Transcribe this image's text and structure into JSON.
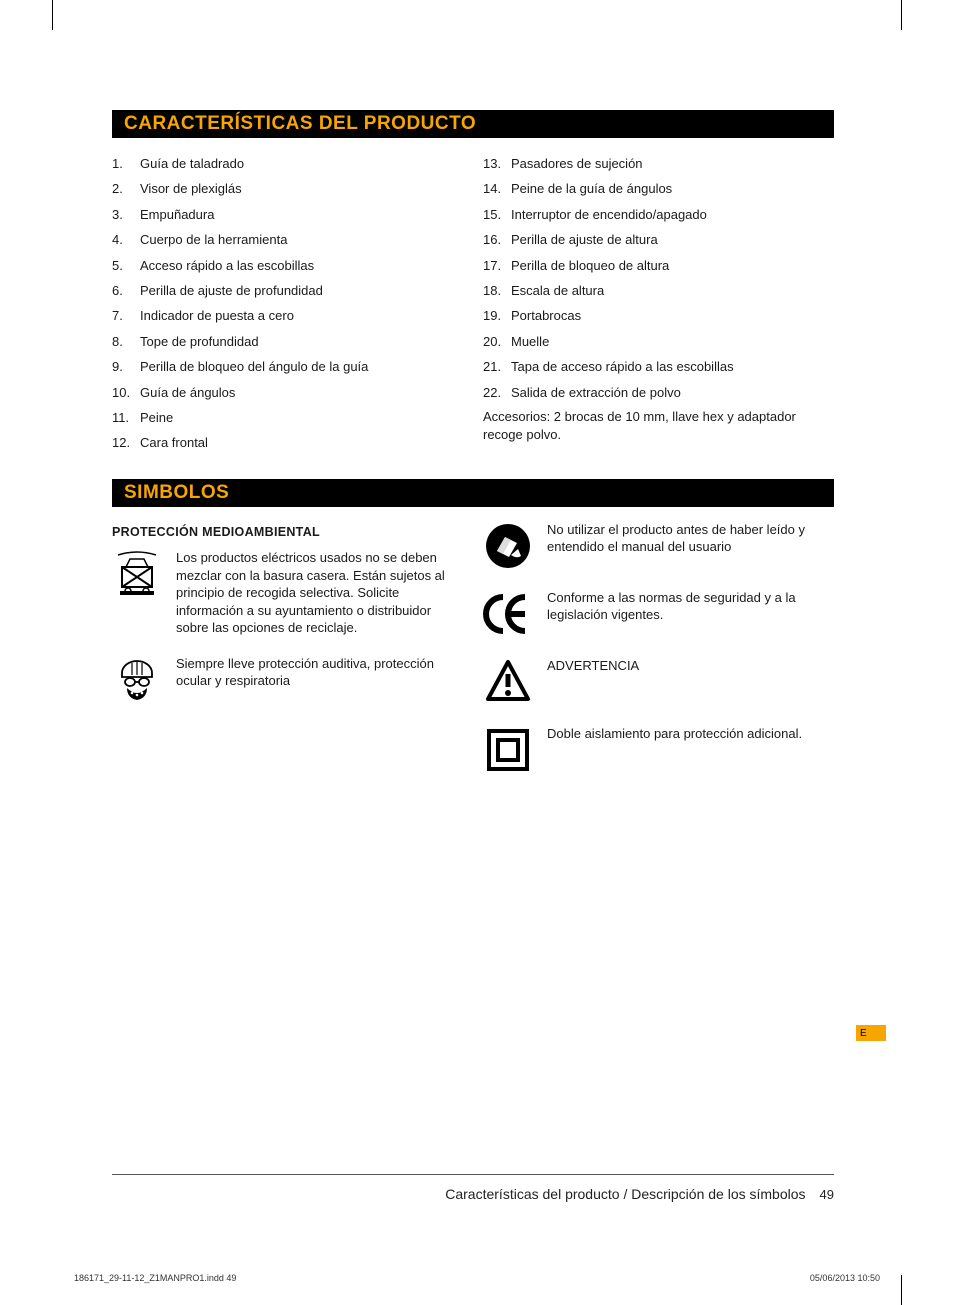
{
  "section1": {
    "title": "CARACTERÍSTICAS DEL PRODUCTO",
    "left_start": 1,
    "left": [
      "Guía de taladrado",
      "Visor de plexiglás",
      "Empuñadura",
      "Cuerpo de la herramienta",
      "Acceso rápido a las escobillas",
      "Perilla de ajuste de profundidad",
      "Indicador de puesta a cero",
      "Tope de profundidad",
      "Perilla de bloqueo del ángulo de la guía",
      "Guía de ángulos",
      "Peine",
      "Cara frontal"
    ],
    "right_start": 13,
    "right": [
      "Pasadores de sujeción",
      "Peine de la guía de ángulos",
      "Interruptor de encendido/apagado",
      "Perilla de ajuste de altura",
      "Perilla de bloqueo de altura",
      "Escala de altura",
      "Portabrocas",
      "Muelle",
      "Tapa de acceso rápido a las escobillas",
      "Salida de extracción de polvo"
    ],
    "accessory_note": "Accesorios: 2 brocas de 10 mm, llave hex y adaptador recoge polvo."
  },
  "section2": {
    "title": "SIMBOLOS",
    "sub_title": "PROTECCIÓN MEDIOAMBIENTAL",
    "left_rows": [
      {
        "icon": "weee",
        "text": "Los productos eléctricos usados no se deben mezclar con la basura casera. Están sujetos al principio de recogida selectiva. Solicite información a su ayuntamiento o distribuidor sobre las opciones de reciclaje."
      },
      {
        "icon": "ppe",
        "text": "Siempre lleve protección auditiva, protección ocular y respiratoria"
      }
    ],
    "right_rows": [
      {
        "icon": "manual",
        "text": "No utilizar el producto antes de haber leído y entendido el manual del usuario"
      },
      {
        "icon": "ce",
        "text": "Conforme a las normas de seguridad y a la legislación vigentes."
      },
      {
        "icon": "warning",
        "text": "ADVERTENCIA"
      },
      {
        "icon": "double-insulation",
        "text": "Doble aislamiento para protección adicional."
      }
    ]
  },
  "lang_tab": "E",
  "footer": {
    "title": "Características del producto / Descripción de los símbolos",
    "page": "49"
  },
  "print": {
    "file": "186171_29-11-12_Z1MANPRO1.indd   49",
    "date": "05/06/2013   10:50"
  },
  "colors": {
    "accent": "#f7a600",
    "black": "#000000",
    "text": "#1a1a1a"
  }
}
